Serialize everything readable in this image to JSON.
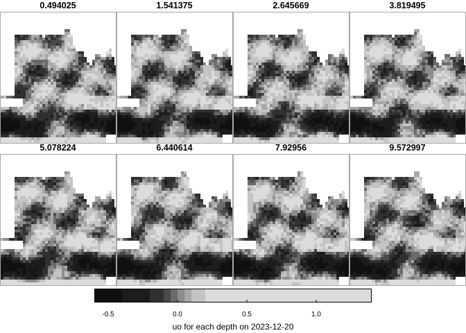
{
  "panels": [
    {
      "depth": "0.494025"
    },
    {
      "depth": "1.541375"
    },
    {
      "depth": "2.645669"
    },
    {
      "depth": "3.819495"
    },
    {
      "depth": "5.078224"
    },
    {
      "depth": "6.440614"
    },
    {
      "depth": "7.92956"
    },
    {
      "depth": "9.572997"
    }
  ],
  "legend": {
    "title": "uo for each depth on 2023-12-20",
    "range": [
      -0.6,
      1.4
    ],
    "ticks": [
      {
        "value": -0.5,
        "label": "-0.5"
      },
      {
        "value": 0.0,
        "label": "0.0"
      },
      {
        "value": 0.5,
        "label": "0.5"
      },
      {
        "value": 1.0,
        "label": "1.0"
      }
    ],
    "breaks": [
      -0.6,
      -0.4,
      -0.2,
      -0.1,
      -0.05,
      0.0,
      0.05,
      0.1,
      0.2,
      1.4
    ],
    "colors": [
      "#101010",
      "#1c1c1c",
      "#303030",
      "#4a4a4a",
      "#6a6a6a",
      "#8c8c8c",
      "#a8a8a8",
      "#c4c4c4",
      "#dcdcdc"
    ]
  },
  "colors": {
    "land": "#ffffff",
    "panel_border": "#a8a8a8"
  }
}
